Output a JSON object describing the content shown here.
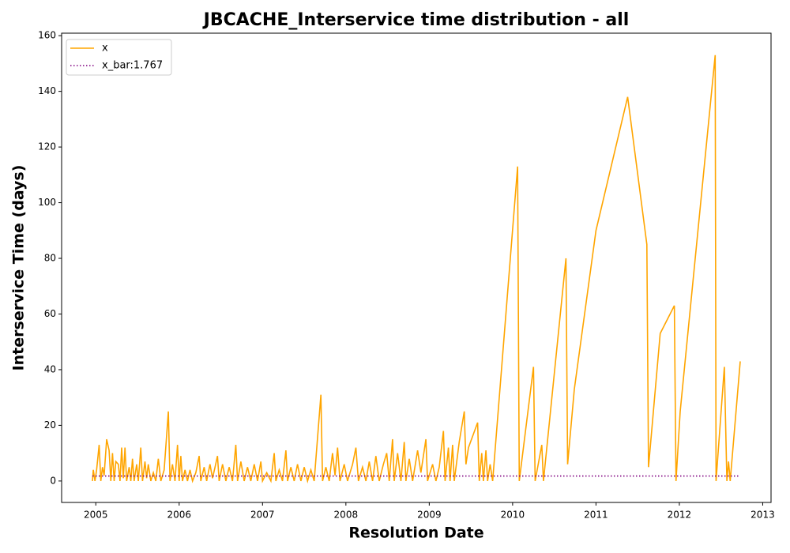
{
  "chart_data": {
    "type": "line",
    "title": "JBCACHE_Interservice time distribution - all",
    "x_label": "Resolution Date",
    "y_label": "Interservice Time (days)",
    "xlim": [
      2004.59,
      2013.1
    ],
    "ylim": [
      -7.7,
      160.9
    ],
    "xticks": [
      2005,
      2006,
      2007,
      2008,
      2009,
      2010,
      2011,
      2012,
      2013
    ],
    "yticks": [
      0,
      20,
      40,
      60,
      80,
      100,
      120,
      140,
      160
    ],
    "legend": "upper left",
    "series": [
      {
        "name": "x",
        "color": "#ffa500",
        "style": "solid",
        "x": [
          2004.96,
          2004.97,
          2004.99,
          2005.01,
          2005.04,
          2005.06,
          2005.08,
          2005.1,
          2005.13,
          2005.16,
          2005.18,
          2005.2,
          2005.22,
          2005.24,
          2005.27,
          2005.29,
          2005.31,
          2005.33,
          2005.35,
          2005.37,
          2005.4,
          2005.42,
          2005.44,
          2005.46,
          2005.49,
          2005.51,
          2005.54,
          2005.56,
          2005.59,
          2005.61,
          2005.63,
          2005.66,
          2005.69,
          2005.72,
          2005.75,
          2005.78,
          2005.82,
          2005.87,
          2005.89,
          2005.92,
          2005.95,
          2005.98,
          2006.0,
          2006.02,
          2006.04,
          2006.07,
          2006.1,
          2006.13,
          2006.16,
          2006.2,
          2006.24,
          2006.26,
          2006.3,
          2006.33,
          2006.37,
          2006.4,
          2006.43,
          2006.46,
          2006.48,
          2006.52,
          2006.56,
          2006.6,
          2006.64,
          2006.68,
          2006.7,
          2006.74,
          2006.78,
          2006.82,
          2006.86,
          2006.9,
          2006.94,
          2006.98,
          2007.0,
          2007.05,
          2007.1,
          2007.14,
          2007.16,
          2007.2,
          2007.24,
          2007.28,
          2007.3,
          2007.34,
          2007.38,
          2007.42,
          2007.46,
          2007.5,
          2007.54,
          2007.58,
          2007.62,
          2007.7,
          2007.72,
          2007.76,
          2007.8,
          2007.84,
          2007.87,
          2007.9,
          2007.93,
          2007.98,
          2008.02,
          2008.08,
          2008.12,
          2008.15,
          2008.2,
          2008.24,
          2008.28,
          2008.32,
          2008.36,
          2008.4,
          2008.45,
          2008.49,
          2008.52,
          2008.56,
          2008.58,
          2008.62,
          2008.66,
          2008.7,
          2008.72,
          2008.76,
          2008.8,
          2008.86,
          2008.9,
          2008.96,
          2008.98,
          2009.04,
          2009.08,
          2009.12,
          2009.17,
          2009.19,
          2009.23,
          2009.25,
          2009.28,
          2009.3,
          2009.36,
          2009.42,
          2009.44,
          2009.47,
          2009.58,
          2009.6,
          2009.63,
          2009.65,
          2009.68,
          2009.7,
          2009.73,
          2009.76,
          2010.06,
          2010.08,
          2010.25,
          2010.27,
          2010.35,
          2010.37,
          2010.64,
          2010.66,
          2010.74,
          2011.0,
          2011.38,
          2011.61,
          2011.63,
          2011.77,
          2011.94,
          2011.96,
          2012.01,
          2012.43,
          2012.44,
          2012.54,
          2012.57,
          2012.59,
          2012.61,
          2012.73
        ],
        "values": [
          0,
          4,
          0,
          4,
          13,
          0,
          5,
          2,
          15,
          11,
          0,
          10,
          0,
          7,
          6,
          0,
          12,
          1,
          12,
          0,
          5,
          0,
          8,
          0,
          6,
          0,
          12,
          0,
          7,
          1,
          6,
          0,
          3,
          0,
          8,
          0,
          4,
          25,
          0,
          6,
          0,
          13,
          0,
          9,
          0,
          4,
          0,
          4,
          0,
          3,
          9,
          0,
          5,
          0,
          6,
          1,
          5,
          9,
          0,
          6,
          0,
          5,
          0,
          13,
          0,
          7,
          0,
          5,
          0,
          6,
          0,
          7,
          0,
          3,
          0,
          10,
          0,
          4,
          0,
          11,
          0,
          5,
          0,
          6,
          0,
          5,
          0,
          4,
          0,
          31,
          0,
          5,
          0,
          10,
          2,
          12,
          0,
          6,
          0,
          6,
          12,
          0,
          5,
          0,
          7,
          0,
          9,
          0,
          6,
          10,
          0,
          15,
          0,
          10,
          0,
          14,
          0,
          8,
          0,
          11,
          3,
          15,
          0,
          6,
          0,
          5,
          18,
          0,
          12,
          0,
          13,
          0,
          14,
          25,
          6,
          12,
          21,
          0,
          10,
          0,
          11,
          0,
          6,
          0,
          113,
          0,
          41,
          0,
          13,
          0,
          80,
          6,
          33,
          90,
          138,
          85,
          5,
          53,
          63,
          0,
          25,
          153,
          0,
          41,
          0,
          7,
          0,
          43
        ]
      },
      {
        "name": "x_bar:1.767",
        "color": "#800080",
        "style": "dotted",
        "x": [
          2004.96,
          2012.73
        ],
        "values": [
          1.767,
          1.767
        ]
      }
    ]
  }
}
